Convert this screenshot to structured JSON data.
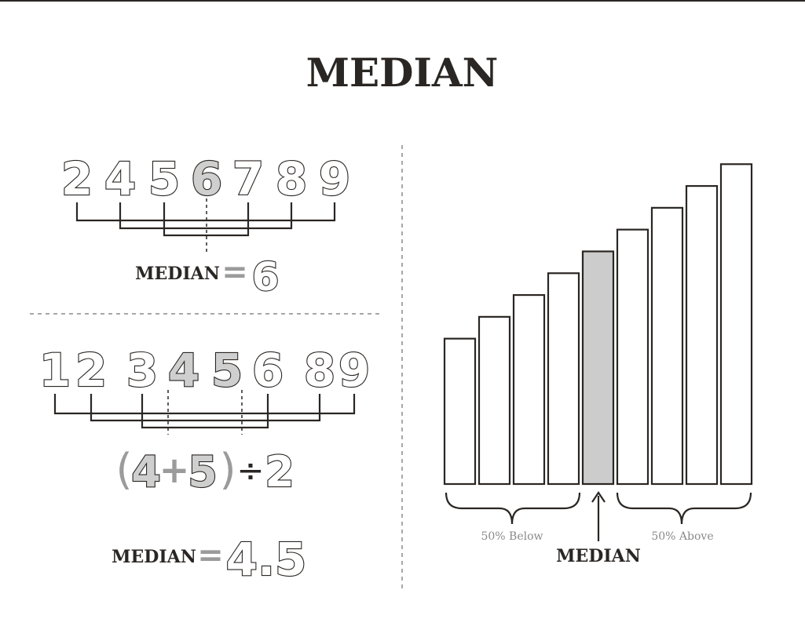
{
  "title": "MEDIAN",
  "odd_example": {
    "numbers": [
      "2",
      "4",
      "5",
      "6",
      "7",
      "8",
      "9"
    ],
    "highlight_index": 3,
    "result_label": "MEDIAN",
    "equals": "=",
    "result_value": "6"
  },
  "even_example": {
    "numbers": [
      "1",
      "2",
      "3",
      "4",
      "5",
      "6",
      "8",
      "9"
    ],
    "highlight_indices": [
      3,
      4
    ],
    "formula": {
      "open_paren": "(",
      "a": "4",
      "plus": "+",
      "b": "5",
      "close_paren": ")",
      "divide": "÷",
      "divisor": "2"
    },
    "result_label": "MEDIAN",
    "equals": "=",
    "result_value": "4.5"
  },
  "chart_data": {
    "type": "bar",
    "values": [
      4.0,
      4.6,
      5.2,
      5.8,
      6.4,
      7.0,
      7.6,
      8.2,
      8.8
    ],
    "median_index": 4,
    "ylim": [
      0,
      9
    ],
    "below_label": "50% Below",
    "above_label": "50% Above",
    "median_label": "MEDIAN",
    "colors": {
      "bar": "#ffffff",
      "median_bar": "#cccccc",
      "stroke": "#2a2623"
    }
  }
}
